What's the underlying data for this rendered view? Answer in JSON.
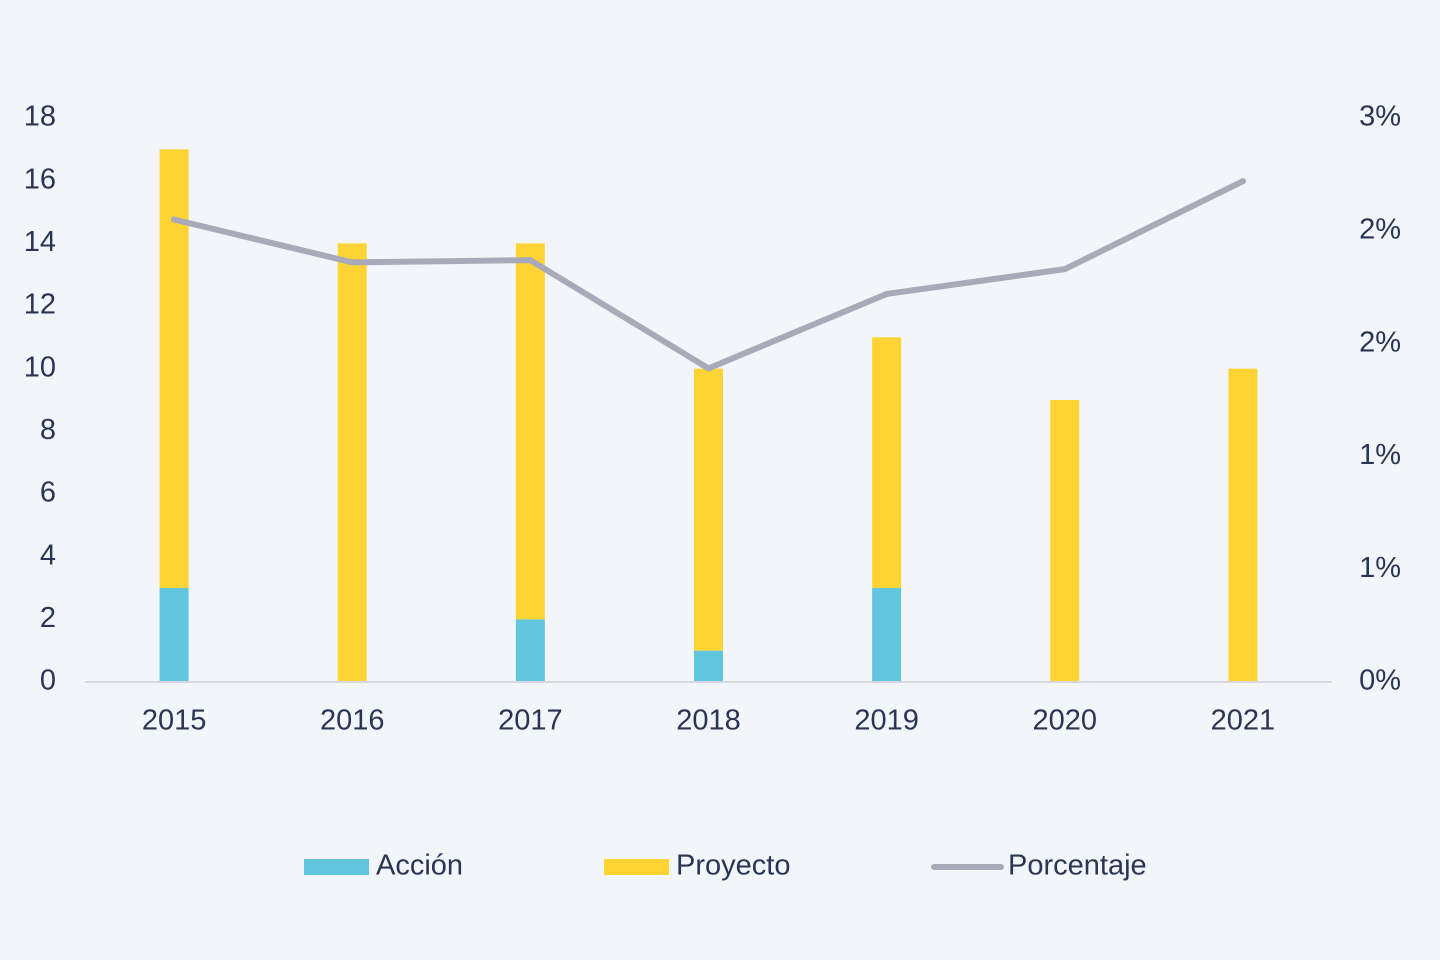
{
  "chart_data": {
    "type": "bar",
    "stacked": true,
    "categories": [
      "2015",
      "2016",
      "2017",
      "2018",
      "2019",
      "2020",
      "2021"
    ],
    "series": [
      {
        "name": "Acción",
        "type": "bar",
        "axis": "left",
        "color": "#62c6df",
        "values": [
          3,
          0,
          2,
          1,
          3,
          0,
          0
        ]
      },
      {
        "name": "Proyecto",
        "type": "bar",
        "axis": "left",
        "color": "#fed434",
        "values": [
          14,
          14,
          12,
          9,
          8,
          9,
          10
        ]
      },
      {
        "name": "Porcentaje",
        "type": "line",
        "axis": "right",
        "color": "#a9aab9",
        "values": [
          0.0205,
          0.0186,
          0.0187,
          0.0139,
          0.0172,
          0.0183,
          0.0222
        ]
      }
    ],
    "y_left": {
      "ylim": [
        0,
        18
      ],
      "ticks": [
        "0",
        "2",
        "4",
        "6",
        "8",
        "10",
        "12",
        "14",
        "16",
        "18"
      ]
    },
    "y_right": {
      "ylim": [
        0,
        0.025
      ],
      "ticks": [
        "0%",
        "1%",
        "1%",
        "2%",
        "2%",
        "3%"
      ]
    },
    "grid": false,
    "legend": {
      "position": "bottom",
      "items": [
        "Acción",
        "Proyecto",
        "Porcentaje"
      ]
    },
    "title": "",
    "xlabel": "",
    "ylabel": ""
  }
}
